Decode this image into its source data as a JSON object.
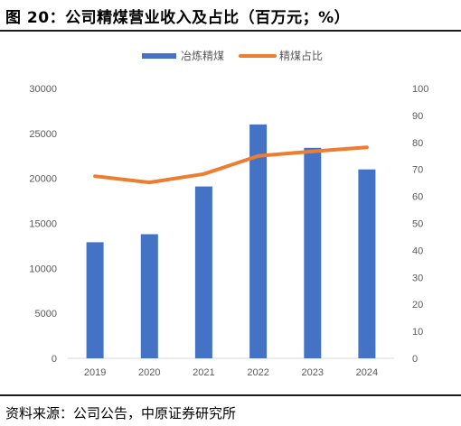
{
  "figure": {
    "title": "图 20：公司精煤营业收入及占比（百万元；%）",
    "source": "资料来源：公司公告，中原证券研究所"
  },
  "chart_data": {
    "type": "bar",
    "categories": [
      "2019",
      "2020",
      "2021",
      "2022",
      "2023",
      "2024"
    ],
    "series": [
      {
        "name": "冶炼精煤",
        "type": "bar",
        "axis": "left",
        "color": "#4472C4",
        "values": [
          12900,
          13800,
          19100,
          26000,
          23400,
          21000
        ]
      },
      {
        "name": "精煤占比",
        "type": "line",
        "axis": "right",
        "color": "#ED7D31",
        "values": [
          67.5,
          65.2,
          68.3,
          75.0,
          76.7,
          78.2
        ]
      }
    ],
    "y_left": {
      "min": 0,
      "max": 30000,
      "step": 5000,
      "ticks": [
        "0",
        "5000",
        "10000",
        "15000",
        "20000",
        "25000",
        "30000"
      ]
    },
    "y_right": {
      "min": 0,
      "max": 100,
      "step": 10,
      "ticks": [
        "0",
        "10",
        "20",
        "30",
        "40",
        "50",
        "60",
        "70",
        "80",
        "90",
        "100"
      ]
    },
    "legend": "top-center",
    "grid": false
  }
}
